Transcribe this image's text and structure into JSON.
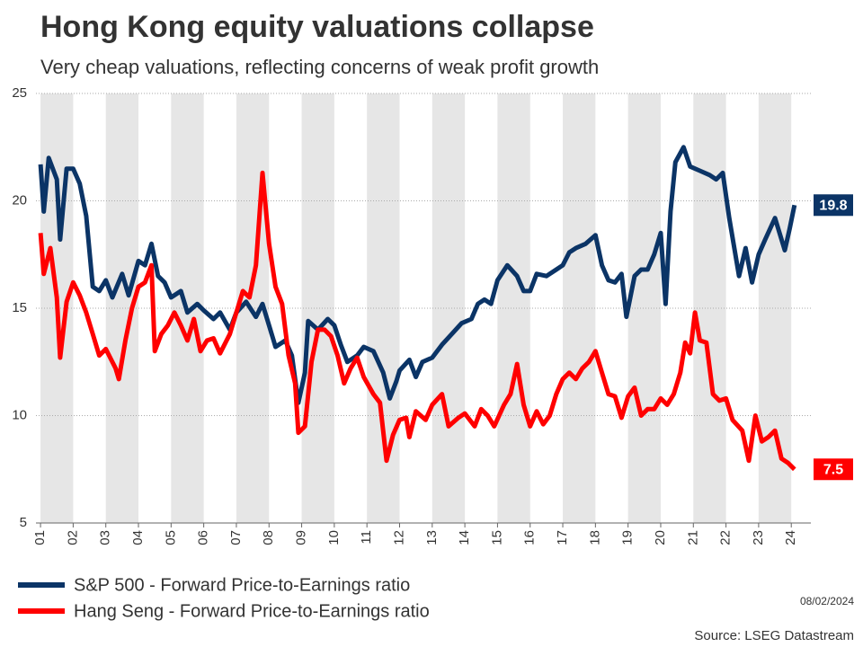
{
  "chart_data": {
    "type": "line",
    "title": "Hong Kong equity valuations collapse",
    "subtitle": "Very cheap valuations, reflecting concerns of weak profit growth",
    "date": "08/02/2024",
    "source": "Source: LSEG Datastream",
    "xlim": [
      2000.86,
      2024.6
    ],
    "xticks": [
      {
        "value": 2001,
        "label": "01"
      },
      {
        "value": 2002,
        "label": "02"
      },
      {
        "value": 2003,
        "label": "03"
      },
      {
        "value": 2004,
        "label": "04"
      },
      {
        "value": 2005,
        "label": "05"
      },
      {
        "value": 2006,
        "label": "06"
      },
      {
        "value": 2007,
        "label": "07"
      },
      {
        "value": 2008,
        "label": "08"
      },
      {
        "value": 2009,
        "label": "09"
      },
      {
        "value": 2010,
        "label": "10"
      },
      {
        "value": 2011,
        "label": "11"
      },
      {
        "value": 2012,
        "label": "12"
      },
      {
        "value": 2013,
        "label": "13"
      },
      {
        "value": 2014,
        "label": "14"
      },
      {
        "value": 2015,
        "label": "15"
      },
      {
        "value": 2016,
        "label": "16"
      },
      {
        "value": 2017,
        "label": "17"
      },
      {
        "value": 2018,
        "label": "18"
      },
      {
        "value": 2019,
        "label": "19"
      },
      {
        "value": 2020,
        "label": "20"
      },
      {
        "value": 2021,
        "label": "21"
      },
      {
        "value": 2022,
        "label": "22"
      },
      {
        "value": 2023,
        "label": "23"
      },
      {
        "value": 2024,
        "label": "24"
      }
    ],
    "ylim": [
      5,
      25
    ],
    "yticks": [
      5,
      10,
      15,
      20,
      25
    ],
    "grid": true,
    "series": [
      {
        "name": "S&P 500 - Forward Price-to-Earnings ratio",
        "color": "#0b3466",
        "x": [
          2001.0,
          2001.1,
          2001.25,
          2001.5,
          2001.6,
          2001.8,
          2002.0,
          2002.2,
          2002.4,
          2002.6,
          2002.8,
          2003.0,
          2003.2,
          2003.5,
          2003.7,
          2004.0,
          2004.2,
          2004.4,
          2004.6,
          2004.8,
          2005.0,
          2005.3,
          2005.5,
          2005.8,
          2006.0,
          2006.3,
          2006.5,
          2006.8,
          2007.0,
          2007.3,
          2007.6,
          2007.8,
          2008.0,
          2008.2,
          2008.5,
          2008.7,
          2008.9,
          2009.1,
          2009.2,
          2009.5,
          2009.8,
          2010.0,
          2010.2,
          2010.4,
          2010.7,
          2010.9,
          2011.2,
          2011.5,
          2011.7,
          2011.9,
          2012.0,
          2012.3,
          2012.5,
          2012.7,
          2013.0,
          2013.3,
          2013.6,
          2013.9,
          2014.2,
          2014.4,
          2014.6,
          2014.8,
          2015.0,
          2015.3,
          2015.6,
          2015.8,
          2016.0,
          2016.2,
          2016.5,
          2016.8,
          2017.0,
          2017.2,
          2017.4,
          2017.7,
          2018.0,
          2018.2,
          2018.4,
          2018.6,
          2018.8,
          2018.95,
          2019.2,
          2019.4,
          2019.6,
          2019.8,
          2020.0,
          2020.15,
          2020.3,
          2020.45,
          2020.7,
          2020.9,
          2021.2,
          2021.5,
          2021.7,
          2021.9,
          2022.1,
          2022.4,
          2022.6,
          2022.8,
          2023.0,
          2023.2,
          2023.5,
          2023.8,
          2023.95,
          2024.1
        ],
        "values": [
          21.7,
          19.5,
          22,
          21,
          18.2,
          21.5,
          21.5,
          20.8,
          19.3,
          16,
          15.8,
          16.3,
          15.5,
          16.6,
          15.6,
          17.2,
          17,
          18,
          16.5,
          16.2,
          15.5,
          15.8,
          14.8,
          15.2,
          14.9,
          14.5,
          14.8,
          14,
          14.8,
          15.3,
          14.6,
          15.2,
          14.2,
          13.2,
          13.5,
          12.8,
          10.6,
          12.0,
          14.4,
          14.0,
          14.5,
          14.2,
          13.3,
          12.5,
          12.8,
          13.2,
          13.0,
          12.0,
          10.8,
          11.6,
          12.1,
          12.6,
          11.8,
          12.5,
          12.7,
          13.3,
          13.8,
          14.3,
          14.5,
          15.2,
          15.4,
          15.2,
          16.3,
          17.0,
          16.5,
          15.8,
          15.8,
          16.6,
          16.5,
          16.8,
          17.0,
          17.6,
          17.8,
          18.0,
          18.4,
          17.0,
          16.3,
          16.2,
          16.6,
          14.6,
          16.5,
          16.8,
          16.8,
          17.5,
          18.5,
          15.2,
          19.5,
          21.8,
          22.5,
          21.6,
          21.4,
          21.2,
          21.0,
          21.3,
          19.2,
          16.5,
          17.8,
          16.2,
          17.5,
          18.2,
          19.2,
          17.7,
          18.7,
          19.8
        ]
      },
      {
        "name": "Hang Seng - Forward Price-to-Earnings ratio",
        "color": "#ff0000",
        "x": [
          2001.0,
          2001.1,
          2001.3,
          2001.5,
          2001.6,
          2001.8,
          2002.0,
          2002.2,
          2002.4,
          2002.6,
          2002.8,
          2003.0,
          2003.3,
          2003.4,
          2003.6,
          2003.8,
          2004.0,
          2004.2,
          2004.4,
          2004.5,
          2004.7,
          2004.9,
          2005.1,
          2005.3,
          2005.5,
          2005.7,
          2005.9,
          2006.1,
          2006.3,
          2006.5,
          2006.8,
          2007.0,
          2007.2,
          2007.4,
          2007.6,
          2007.8,
          2008.0,
          2008.2,
          2008.4,
          2008.6,
          2008.8,
          2008.9,
          2009.1,
          2009.3,
          2009.5,
          2009.7,
          2009.9,
          2010.1,
          2010.3,
          2010.5,
          2010.7,
          2010.9,
          2011.2,
          2011.4,
          2011.6,
          2011.8,
          2012.0,
          2012.2,
          2012.3,
          2012.5,
          2012.8,
          2013.0,
          2013.3,
          2013.5,
          2013.8,
          2014.0,
          2014.3,
          2014.5,
          2014.7,
          2014.9,
          2015.2,
          2015.4,
          2015.6,
          2015.8,
          2016.0,
          2016.2,
          2016.4,
          2016.6,
          2016.8,
          2017.0,
          2017.2,
          2017.4,
          2017.6,
          2017.8,
          2018.0,
          2018.2,
          2018.4,
          2018.6,
          2018.8,
          2019.0,
          2019.2,
          2019.4,
          2019.6,
          2019.8,
          2020.0,
          2020.2,
          2020.4,
          2020.6,
          2020.75,
          2020.9,
          2021.05,
          2021.2,
          2021.4,
          2021.6,
          2021.8,
          2022.0,
          2022.2,
          2022.5,
          2022.7,
          2022.9,
          2023.1,
          2023.3,
          2023.5,
          2023.7,
          2023.9,
          2024.1
        ],
        "values": [
          18.5,
          16.6,
          17.8,
          15.5,
          12.7,
          15.3,
          16.2,
          15.6,
          14.8,
          13.8,
          12.8,
          13.1,
          12.2,
          11.7,
          13.5,
          15.0,
          16.0,
          16.2,
          17.0,
          13.0,
          13.8,
          14.2,
          14.8,
          14.2,
          13.5,
          14.5,
          13.0,
          13.5,
          13.6,
          12.9,
          13.8,
          14.8,
          15.8,
          15.5,
          17.0,
          21.3,
          18.0,
          16.0,
          15.2,
          12.8,
          11.5,
          9.2,
          9.5,
          12.5,
          14.0,
          14.0,
          13.7,
          12.8,
          11.5,
          12.2,
          12.7,
          11.8,
          11.0,
          10.6,
          7.9,
          9.1,
          9.8,
          9.9,
          9.0,
          10.2,
          9.8,
          10.5,
          11.0,
          9.5,
          9.9,
          10.1,
          9.5,
          10.3,
          10.0,
          9.5,
          10.5,
          11.0,
          12.4,
          10.5,
          9.5,
          10.2,
          9.6,
          10.0,
          11.0,
          11.7,
          12.0,
          11.7,
          12.2,
          12.5,
          13.0,
          12.0,
          11.0,
          10.9,
          9.9,
          10.9,
          11.3,
          10.0,
          10.3,
          10.3,
          10.8,
          10.5,
          11.0,
          12.0,
          13.4,
          12.9,
          14.8,
          13.5,
          13.4,
          11.0,
          10.7,
          10.8,
          9.8,
          9.3,
          7.9,
          10.0,
          8.8,
          9.0,
          9.3,
          8.0,
          7.8,
          7.5
        ]
      }
    ]
  }
}
